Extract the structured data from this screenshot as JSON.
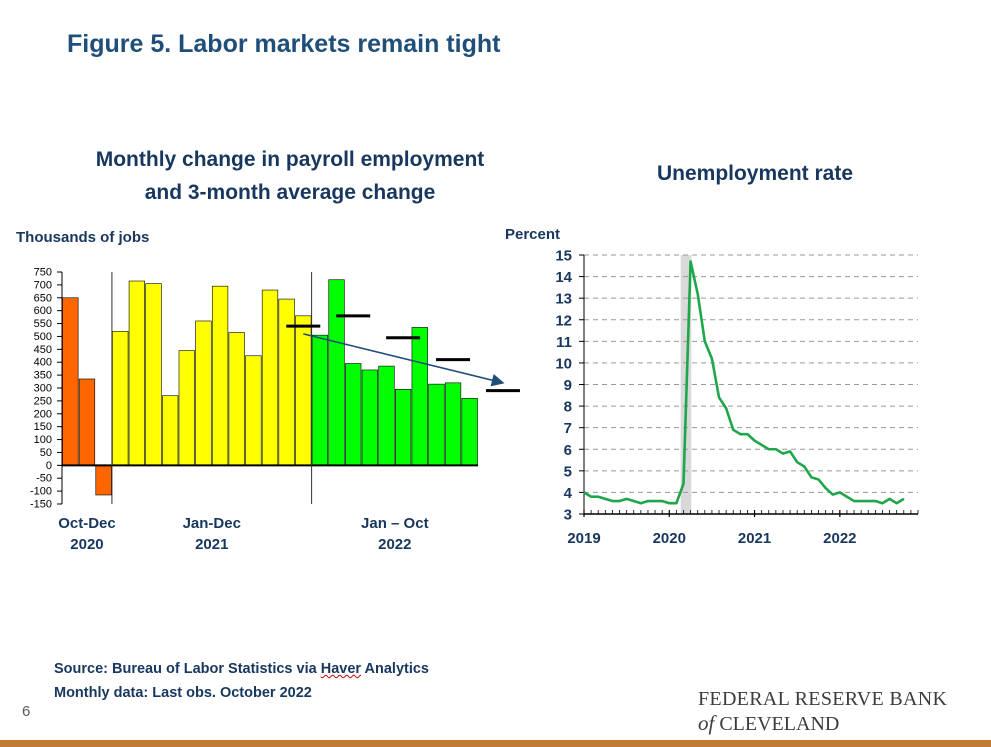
{
  "slide": {
    "title": "Figure 5.  Labor markets remain tight",
    "source_prefix": "Source: Bureau of Labor Statistics via ",
    "source_haver": "Haver",
    "source_suffix": " Analytics",
    "note": "Monthly data: Last obs. October 2022",
    "page_number": "6",
    "logo_line1": "FEDERAL RESERVE BANK",
    "logo_of": "of",
    "logo_line2": "CLEVELAND",
    "accent_color": "#c07c34"
  },
  "chart_data": [
    {
      "type": "bar",
      "title_line1": "Monthly change in payroll employment",
      "title_line2": "and 3-month average change",
      "ylabel": "Thousands of jobs",
      "ylim": [
        -150,
        750
      ],
      "yticks": [
        750,
        700,
        650,
        600,
        550,
        500,
        450,
        400,
        350,
        300,
        250,
        200,
        150,
        100,
        50,
        0,
        -50,
        -100,
        -150
      ],
      "ytick_labels": [
        "750",
        "700",
        "650",
        "600",
        "550",
        "500",
        "450",
        "400",
        "350",
        "300",
        "250",
        "200",
        "150",
        "100",
        "50",
        "0",
        "-50",
        "-100",
        "-150"
      ],
      "groups": [
        {
          "label_line1": "Oct-Dec",
          "label_line2": "2020",
          "color": "#ff6600",
          "values": [
            650,
            335,
            -115
          ]
        },
        {
          "label_line1": "Jan-Dec",
          "label_line2": "2021",
          "color": "#ffff00",
          "values": [
            520,
            715,
            705,
            270,
            445,
            560,
            695,
            515,
            425,
            680,
            645,
            580
          ]
        },
        {
          "label_line1": "Jan – Oct",
          "label_line2": "2022",
          "color": "#00ff00",
          "values": [
            505,
            720,
            395,
            370,
            385,
            295,
            535,
            315,
            320,
            260
          ]
        }
      ],
      "three_month_avg": [
        {
          "index": 14,
          "value": 540
        },
        {
          "index": 17,
          "value": 580
        },
        {
          "index": 20,
          "value": 495
        },
        {
          "index": 23,
          "value": 410
        },
        {
          "index": 26,
          "value": 290
        }
      ],
      "trend_arrow": {
        "from_index": 14,
        "from_value": 510,
        "to_index": 26,
        "to_value": 320,
        "color": "#1f4e79"
      }
    },
    {
      "type": "line",
      "title": "Unemployment rate",
      "ylabel": "Percent",
      "ylim": [
        3,
        15
      ],
      "yticks": [
        3,
        4,
        5,
        6,
        7,
        8,
        9,
        10,
        11,
        12,
        13,
        14,
        15
      ],
      "ytick_labels": [
        "3",
        "4",
        "5",
        "6",
        "7",
        "8",
        "9",
        "10",
        "11",
        "12",
        "13",
        "14",
        "15"
      ],
      "x_labels": [
        "2019",
        "2020",
        "2021",
        "2022"
      ],
      "recession_shading": {
        "start": "2020-02",
        "end": "2020-04",
        "color": "#d9d9d9"
      },
      "line_color": "#1fa64a",
      "series": [
        {
          "values": [
            4.0,
            3.8,
            3.8,
            3.7,
            3.6,
            3.6,
            3.7,
            3.6,
            3.5,
            3.6,
            3.6,
            3.6,
            3.5,
            3.5,
            4.4,
            14.7,
            13.2,
            11.0,
            10.2,
            8.4,
            7.9,
            6.9,
            6.7,
            6.7,
            6.4,
            6.2,
            6.0,
            6.0,
            5.8,
            5.9,
            5.4,
            5.2,
            4.7,
            4.6,
            4.2,
            3.9,
            4.0,
            3.8,
            3.6,
            3.6,
            3.6,
            3.6,
            3.5,
            3.7,
            3.5,
            3.7
          ]
        }
      ]
    }
  ]
}
